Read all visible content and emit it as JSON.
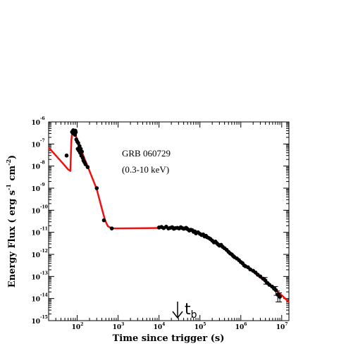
{
  "chart_data": {
    "type": "scatter",
    "title": "",
    "xlabel": "Time since trigger (s)",
    "ylabel": "Energy Flux ( erg s^-1 cm^-2 )",
    "ylabel_parts": {
      "main": "Energy Flux ( erg s",
      "exp1": "-1",
      "mid": " cm",
      "exp2": "-2",
      "end": ")"
    },
    "xscale": "log",
    "yscale": "log",
    "xlim": [
      20,
      15000000
    ],
    "ylim": [
      1e-15,
      1e-06
    ],
    "grid": false,
    "x_ticks": [
      {
        "base": "10",
        "exp": "2",
        "value": 100
      },
      {
        "base": "10",
        "exp": "3",
        "value": 1000
      },
      {
        "base": "10",
        "exp": "4",
        "value": 10000
      },
      {
        "base": "10",
        "exp": "5",
        "value": 100000
      },
      {
        "base": "10",
        "exp": "6",
        "value": 1000000
      },
      {
        "base": "10",
        "exp": "7",
        "value": 10000000
      }
    ],
    "y_ticks": [
      {
        "base": "10",
        "exp": "-15",
        "value": 1e-15
      },
      {
        "base": "10",
        "exp": "-14",
        "value": 1e-14
      },
      {
        "base": "10",
        "exp": "-13",
        "value": 1e-13
      },
      {
        "base": "10",
        "exp": "-12",
        "value": 1e-12
      },
      {
        "base": "10",
        "exp": "-11",
        "value": 1e-11
      },
      {
        "base": "10",
        "exp": "-10",
        "value": 1e-10
      },
      {
        "base": "10",
        "exp": "-9",
        "value": 1e-09
      },
      {
        "base": "10",
        "exp": "-8",
        "value": 1e-08
      },
      {
        "base": "10",
        "exp": "-7",
        "value": 1e-07
      },
      {
        "base": "10",
        "exp": "-6",
        "value": 1e-06
      }
    ],
    "annotations": [
      "GRB 060729",
      "(0.3-10 keV)"
    ],
    "break_marker": {
      "label": "t",
      "subscript": "b",
      "x": 30000
    },
    "series": [
      {
        "kind": "points",
        "color": "#000000",
        "points": [
          [
            55,
            3e-08
          ],
          [
            75,
            3.5e-07
          ],
          [
            78,
            3.2e-07
          ],
          [
            80,
            4.2e-07
          ],
          [
            82,
            3e-07
          ],
          [
            85,
            3.8e-07
          ],
          [
            88,
            2.6e-07
          ],
          [
            90,
            4e-07
          ],
          [
            92,
            3.4e-07
          ],
          [
            95,
            1.6e-07
          ],
          [
            100,
            1.3e-07
          ],
          [
            103,
            6e-08
          ],
          [
            106,
            1.1e-07
          ],
          [
            110,
            5e-08
          ],
          [
            114,
            8e-08
          ],
          [
            118,
            4e-08
          ],
          [
            122,
            6e-08
          ],
          [
            126,
            3e-08
          ],
          [
            130,
            4.5e-08
          ],
          [
            136,
            2.4e-08
          ],
          [
            142,
            1.8e-08
          ],
          [
            150,
            1.5e-08
          ],
          [
            160,
            1.2e-08
          ],
          [
            180,
            9e-09
          ],
          [
            300,
            1e-09
          ],
          [
            450,
            3.5e-11
          ],
          [
            700,
            1.5e-11
          ],
          [
            10000,
            1.65e-11
          ],
          [
            11500,
            1.75e-11
          ],
          [
            13000,
            1.55e-11
          ],
          [
            15000,
            1.8e-11
          ],
          [
            17000,
            1.5e-11
          ],
          [
            19000,
            1.6e-11
          ],
          [
            21000,
            1.7e-11
          ],
          [
            23000,
            1.45e-11
          ],
          [
            25000,
            1.55e-11
          ],
          [
            28000,
            1.6e-11
          ],
          [
            31000,
            1.5e-11
          ],
          [
            34000,
            1.7e-11
          ],
          [
            37000,
            1.55e-11
          ],
          [
            40000,
            1.45e-11
          ],
          [
            43000,
            1.5e-11
          ],
          [
            46000,
            1.6e-11
          ],
          [
            50000,
            1.4e-11
          ],
          [
            55000,
            1.2e-11
          ],
          [
            60000,
            1.3e-11
          ],
          [
            65000,
            1.25e-11
          ],
          [
            70000,
            1.05e-11
          ],
          [
            75000,
            1.1e-11
          ],
          [
            80000,
            9e-12
          ],
          [
            90000,
            1e-11
          ],
          [
            100000,
            8.5e-12
          ],
          [
            110000,
            7.5e-12
          ],
          [
            120000,
            8e-12
          ],
          [
            130000,
            6.5e-12
          ],
          [
            140000,
            7e-12
          ],
          [
            150000,
            6e-12
          ],
          [
            165000,
            5.5e-12
          ],
          [
            180000,
            5e-12
          ],
          [
            200000,
            4.2e-12
          ],
          [
            220000,
            3.5e-12
          ],
          [
            240000,
            3.8e-12
          ],
          [
            260000,
            3.2e-12
          ],
          [
            280000,
            2.8e-12
          ],
          [
            300000,
            2.5e-12
          ],
          [
            330000,
            2.7e-12
          ],
          [
            360000,
            2.2e-12
          ],
          [
            400000,
            1.9e-12
          ],
          [
            450000,
            1.6e-12
          ],
          [
            500000,
            1.3e-12
          ],
          [
            550000,
            1.1e-12
          ],
          [
            600000,
            1e-12
          ],
          [
            650000,
            8.5e-13
          ],
          [
            700000,
            7.5e-13
          ],
          [
            800000,
            6.5e-13
          ],
          [
            900000,
            5.5e-13
          ],
          [
            1000000,
            4.5e-13
          ],
          [
            1100000,
            4e-13
          ],
          [
            1200000,
            3.2e-13
          ],
          [
            1300000,
            2.9e-13
          ],
          [
            1500000,
            2.6e-13
          ],
          [
            1700000,
            2.1e-13
          ],
          [
            2000000,
            1.8e-13
          ],
          [
            2300000,
            1.5e-13
          ],
          [
            2600000,
            1.2e-13
          ],
          [
            3000000,
            1e-13
          ],
          [
            3500000,
            8e-14
          ],
          [
            4000000,
            6.5e-14
          ],
          [
            4500000,
            5e-14
          ],
          [
            5000000,
            4.2e-14
          ],
          [
            5800000,
            3.5e-14
          ],
          [
            6500000,
            2.8e-14
          ],
          [
            7200000,
            2.4e-14
          ],
          [
            8000000,
            1.5e-14
          ],
          [
            9000000,
            1.2e-14
          ]
        ],
        "error_bars": [
          [
            4000000,
            6.5e-14,
            4.5e-14,
            9e-14
          ],
          [
            7200000,
            2.4e-14,
            1.4e-14,
            3.5e-14
          ],
          [
            8000000,
            1.5e-14,
            7e-15,
            2.2e-14
          ],
          [
            9000000,
            1.2e-14,
            7e-15,
            1.8e-14
          ]
        ]
      },
      {
        "kind": "model-curve",
        "color": "#ee1111",
        "points": [
          [
            20,
            7e-08
          ],
          [
            30,
            3e-08
          ],
          [
            45,
            1.3e-08
          ],
          [
            60,
            7e-09
          ],
          [
            68,
            6e-09
          ],
          [
            72,
            1.5e-07
          ],
          [
            76,
            3.8e-07
          ],
          [
            82,
            3.6e-07
          ],
          [
            90,
            2.6e-07
          ],
          [
            100,
            1.6e-07
          ],
          [
            120,
            6.5e-08
          ],
          [
            150,
            2.2e-08
          ],
          [
            200,
            6e-09
          ],
          [
            300,
            9e-10
          ],
          [
            400,
            1.2e-10
          ],
          [
            480,
            3.5e-11
          ],
          [
            560,
            1.9e-11
          ],
          [
            700,
            1.5e-11
          ],
          [
            1000,
            1.5e-11
          ],
          [
            5000,
            1.55e-11
          ],
          [
            20000,
            1.6e-11
          ],
          [
            50000,
            1.45e-11
          ],
          [
            100000,
            9e-12
          ],
          [
            300000,
            2.8e-12
          ],
          [
            1000000,
            4.5e-13
          ],
          [
            3000000,
            9e-14
          ],
          [
            10000000,
            1.4e-14
          ],
          [
            15000000,
            7e-15
          ]
        ]
      }
    ]
  }
}
